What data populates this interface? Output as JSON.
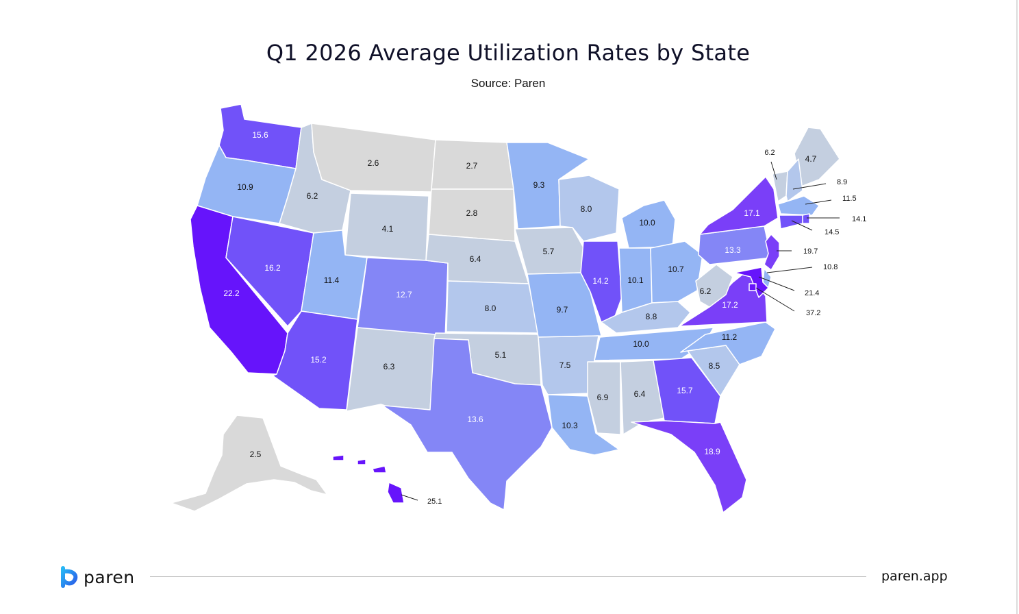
{
  "title": "Q1 2026 Average Utilization Rates by State",
  "subtitle": "Source: Paren",
  "footer": {
    "brand": "paren",
    "site": "paren.app",
    "logo": "paren-logo-icon"
  },
  "colors": {
    "0-3": "#d9d9d9",
    "3-7": "#c4cfe0",
    "7-9": "#b3c7ec",
    "9-12": "#94b5f4",
    "12-14": "#8486f6",
    "14-17": "#7152f9",
    "17-20": "#7a3ff8",
    "20+": "#6614fb"
  },
  "chart_data": {
    "type": "choropleth",
    "metric": "Average Utilization Rate",
    "states": {
      "WA": 15.6,
      "OR": 10.9,
      "CA": 22.2,
      "NV": 16.2,
      "ID": 6.2,
      "MT": 2.6,
      "WY": 4.1,
      "UT": 11.4,
      "AZ": 15.2,
      "CO": 12.7,
      "NM": 6.3,
      "ND": 2.7,
      "SD": 2.8,
      "NE": 6.4,
      "KS": 8.0,
      "OK": 5.1,
      "TX": 13.6,
      "MN": 9.3,
      "IA": 5.7,
      "MO": 9.7,
      "AR": 7.5,
      "LA": 10.3,
      "WI": 8.0,
      "IL": 14.2,
      "MI": 10.0,
      "IN": 10.1,
      "OH": 10.7,
      "KY": 8.8,
      "TN": 10.0,
      "MS": 6.9,
      "AL": 6.4,
      "GA": 15.7,
      "FL": 18.9,
      "SC": 8.5,
      "NC": 11.2,
      "VA": 17.2,
      "WV": 6.2,
      "PA": 13.3,
      "NY": 17.1,
      "ME": 4.7,
      "VT": 6.2,
      "NH": 8.9,
      "MA": 11.5,
      "RI": 14.1,
      "CT": 14.5,
      "NJ": 19.7,
      "DE": 10.8,
      "MD": 21.4,
      "DC": 37.2,
      "AK": 2.5,
      "HI": 25.1
    },
    "labels": {
      "WA": "15.6",
      "OR": "10.9",
      "CA": "22.2",
      "NV": "16.2",
      "ID": "6.2",
      "MT": "2.6",
      "WY": "4.1",
      "UT": "11.4",
      "AZ": "15.2",
      "CO": "12.7",
      "NM": "6.3",
      "ND": "2.7",
      "SD": "2.8",
      "NE": "6.4",
      "KS": "8.0",
      "OK": "5.1",
      "TX": "13.6",
      "MN": "9.3",
      "IA": "5.7",
      "MO": "9.7",
      "AR": "7.5",
      "LA": "10.3",
      "WI": "8.0",
      "IL": "14.2",
      "MI": "10.0",
      "IN": "10.1",
      "OH": "10.7",
      "KY": "8.8",
      "TN": "10.0",
      "MS": "6.9",
      "AL": "6.4",
      "GA": "15.7",
      "FL": "18.9",
      "SC": "8.5",
      "NC": "11.2",
      "VA": "17.2",
      "WV": "6.2",
      "PA": "13.3",
      "NY": "17.1",
      "ME": "4.7",
      "VT": "6.2",
      "NH": "8.9",
      "MA": "11.5",
      "RI": "14.1",
      "CT": "14.5",
      "NJ": "19.7",
      "DE": "10.8",
      "MD": "21.4",
      "DC": "37.2",
      "AK": "2.5",
      "HI": "25.1"
    },
    "callout_states": [
      "VT",
      "NH",
      "MA",
      "RI",
      "CT",
      "NJ",
      "DE",
      "MD",
      "DC",
      "HI"
    ]
  }
}
